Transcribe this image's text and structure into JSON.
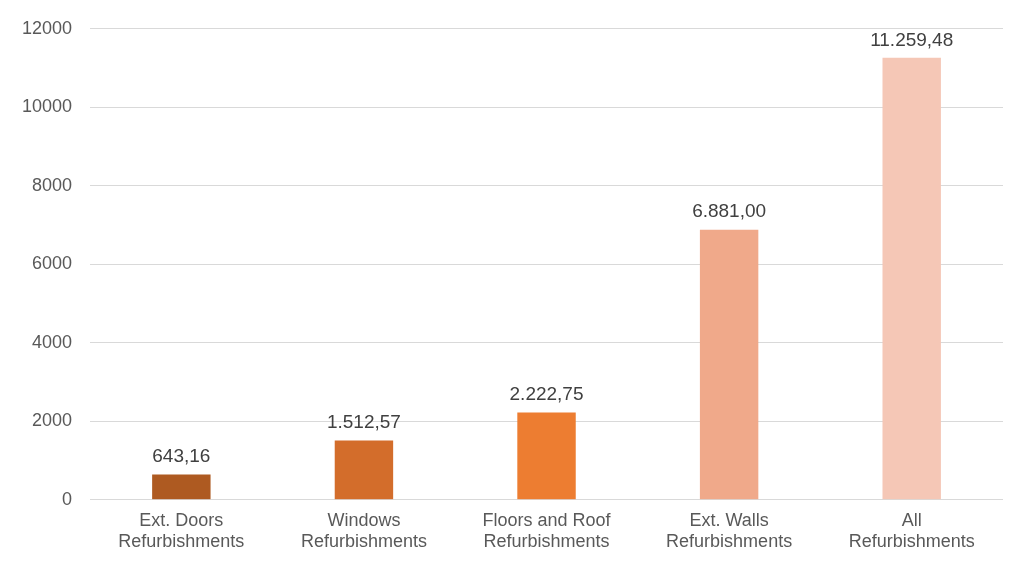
{
  "chart_data": {
    "type": "bar",
    "categories": [
      "Ext. Doors Refurbishments",
      "Windows Refurbishments",
      "Floors and Roof Refurbishments",
      "Ext. Walls Refurbishments",
      "All Refurbishments"
    ],
    "values": [
      643.16,
      1512.57,
      2222.75,
      6881.0,
      11259.48
    ],
    "colors": [
      "#ae5a21",
      "#d36d2b",
      "#ed7d31",
      "#f0a98a",
      "#f5c7b6"
    ],
    "value_labels": [
      "643,16",
      "1.512,57",
      "2.222,75",
      "6.881,00",
      "11.259,48"
    ],
    "ylim": [
      0,
      12000
    ],
    "yticks": [
      0,
      2000,
      4000,
      6000,
      8000,
      10000,
      12000
    ],
    "grid": "y",
    "legend": false
  }
}
